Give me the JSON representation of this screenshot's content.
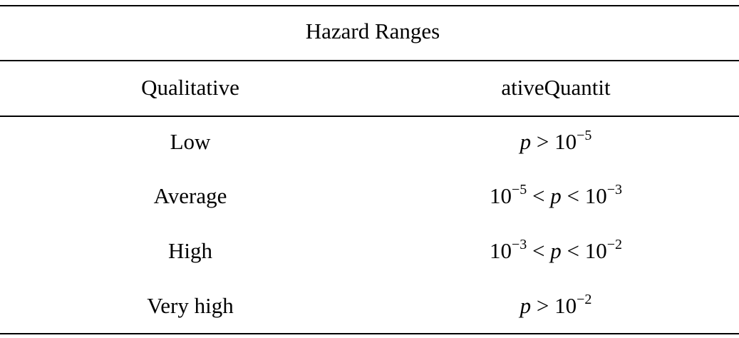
{
  "table": {
    "title": "Hazard Ranges",
    "columns": [
      "Qualitative",
      "ativeQuantit"
    ],
    "rows": [
      [
        [
          {
            "text": "Low"
          }
        ],
        [
          {
            "text": "p",
            "style": "italic"
          },
          {
            "text": " > 10"
          },
          {
            "text": "−5",
            "style": "sup"
          }
        ]
      ],
      [
        [
          {
            "text": "Average"
          }
        ],
        [
          {
            "text": "10"
          },
          {
            "text": "−5",
            "style": "sup"
          },
          {
            "text": " < "
          },
          {
            "text": "p",
            "style": "italic"
          },
          {
            "text": " < 10"
          },
          {
            "text": "−3",
            "style": "sup"
          }
        ]
      ],
      [
        [
          {
            "text": "High"
          }
        ],
        [
          {
            "text": "10"
          },
          {
            "text": "−3",
            "style": "sup"
          },
          {
            "text": " < "
          },
          {
            "text": "p",
            "style": "italic"
          },
          {
            "text": " < 10"
          },
          {
            "text": "−2",
            "style": "sup"
          }
        ]
      ],
      [
        [
          {
            "text": "Very high"
          }
        ],
        [
          {
            "text": "p",
            "style": "italic"
          },
          {
            "text": " > 10"
          },
          {
            "text": "−2",
            "style": "sup"
          }
        ]
      ]
    ]
  }
}
